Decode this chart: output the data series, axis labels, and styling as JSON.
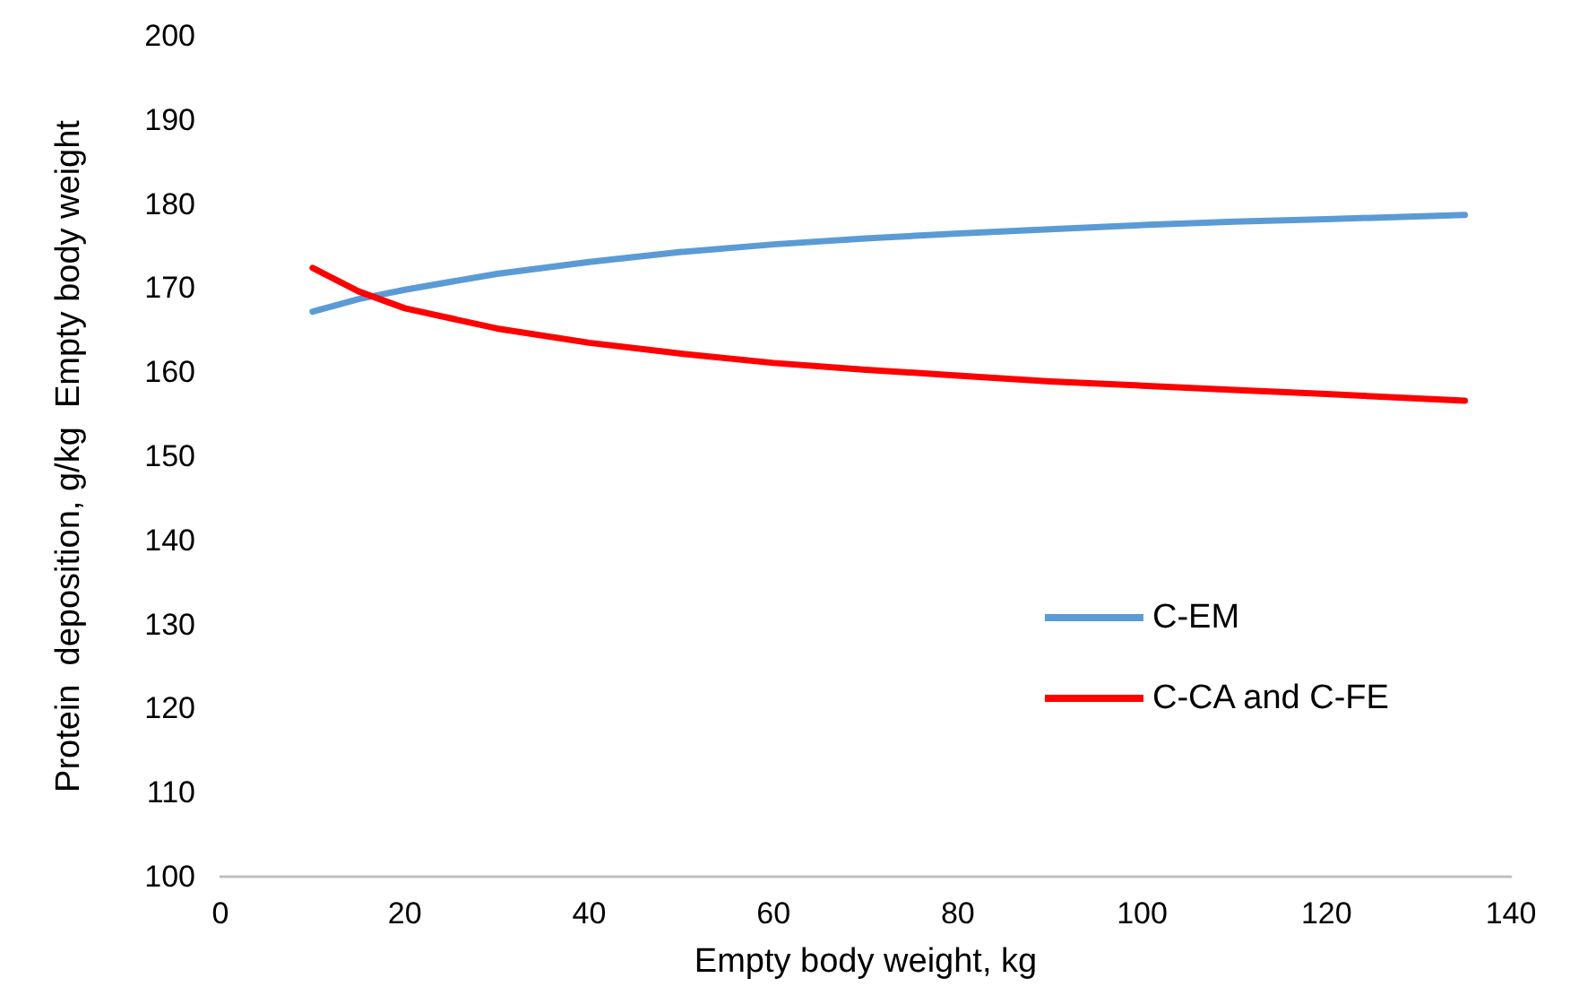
{
  "chart_data": {
    "type": "line",
    "xlabel": "Empty body weight, kg",
    "ylabel": "Protein  deposition, g/kg  Empty body weight",
    "x": [
      10,
      15,
      20,
      30,
      40,
      50,
      60,
      70,
      80,
      90,
      100,
      110,
      120,
      135
    ],
    "series": [
      {
        "name": "C-EM",
        "color": "#5b9bd5",
        "values": [
          167.2,
          168.7,
          169.8,
          171.7,
          173.1,
          174.3,
          175.2,
          175.9,
          176.5,
          177.0,
          177.5,
          177.9,
          178.2,
          178.7
        ]
      },
      {
        "name": "C-CA and C-FE",
        "color": "#ff0000",
        "values": [
          172.4,
          169.6,
          167.6,
          165.2,
          163.5,
          162.2,
          161.1,
          160.3,
          159.6,
          158.9,
          158.4,
          157.9,
          157.4,
          156.6
        ]
      }
    ],
    "xlim": [
      0,
      140
    ],
    "xticks": [
      0,
      20,
      40,
      60,
      80,
      100,
      120,
      140
    ],
    "ylim": [
      100,
      200
    ],
    "yticks": [
      100,
      110,
      120,
      130,
      140,
      150,
      160,
      170,
      180,
      190,
      200
    ],
    "grid": false,
    "legend": "right",
    "marker": "none",
    "line_style": "solid"
  }
}
